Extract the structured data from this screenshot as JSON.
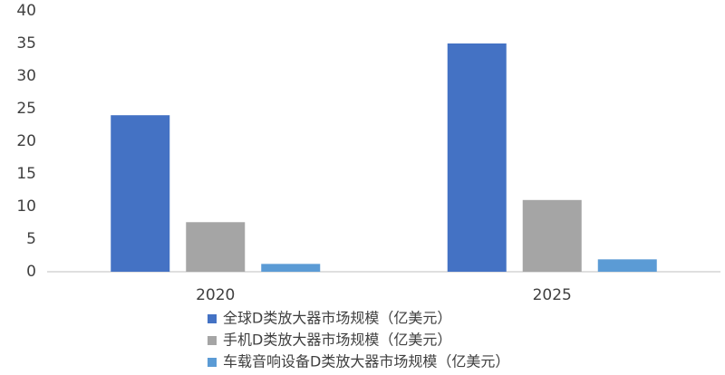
{
  "chart_data": {
    "type": "bar",
    "categories": [
      "2020",
      "2025"
    ],
    "series": [
      {
        "name": "全球D类放大器市场规模（亿美元）",
        "color": "#4472c4",
        "values": [
          24,
          35
        ]
      },
      {
        "name": "手机D类放大器市场规模（亿美元）",
        "color": "#a5a5a5",
        "values": [
          7.6,
          11
        ]
      },
      {
        "name": "车载音响设备D类放大器市场规模（亿美元）",
        "color": "#5b9bd5",
        "values": [
          1.2,
          1.9
        ]
      }
    ],
    "ylim": [
      0,
      40
    ],
    "yticks": [
      0,
      5,
      10,
      15,
      20,
      25,
      30,
      35,
      40
    ],
    "grid": false,
    "legend": "bottom"
  }
}
